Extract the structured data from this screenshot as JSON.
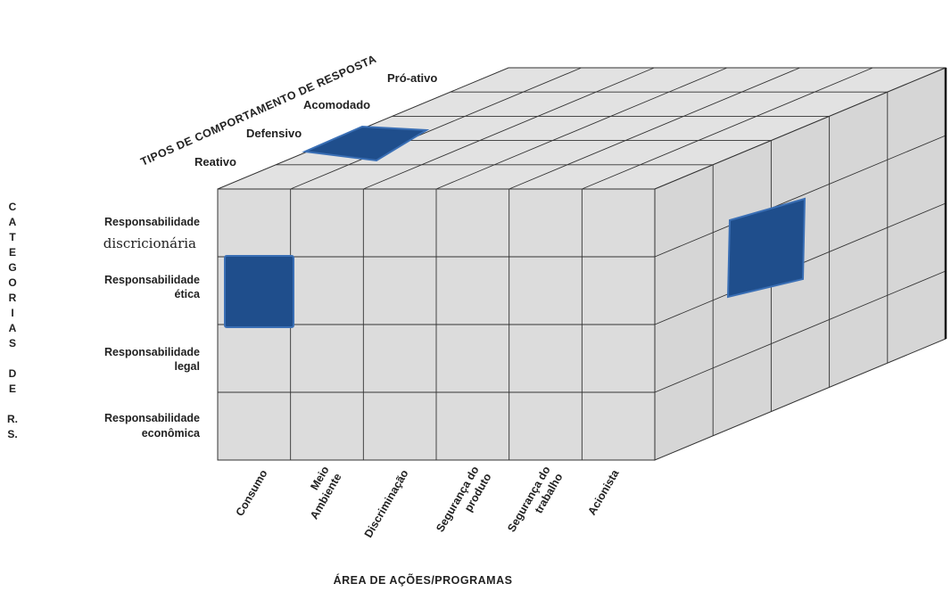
{
  "axes": {
    "top_title": "TIPOS DE COMPORTAMENTO DE RESPOSTA",
    "left_title": "CATEGORIAS DE R.S.",
    "bottom_title": "ÁREA DE AÇÕES/PROGRAMAS"
  },
  "left_letters": [
    "C",
    "A",
    "T",
    "E",
    "G",
    "O",
    "R",
    "I",
    "A",
    "S",
    "",
    "D",
    "E",
    "",
    "R.",
    "S."
  ],
  "categories": [
    {
      "line1": "Responsabilidade",
      "line2": "discricionária"
    },
    {
      "line1": "Responsabilidade",
      "line2": "ética"
    },
    {
      "line1": "Responsabilidade",
      "line2": "legal"
    },
    {
      "line1": "Responsabilidade",
      "line2": "econômica"
    }
  ],
  "tipos": [
    "Reativo",
    "Defensivo",
    "Acomodado",
    "Pró-ativo"
  ],
  "areas": [
    {
      "line1": "Consumo",
      "line2": ""
    },
    {
      "line1": "Meio",
      "line2": "Ambiente"
    },
    {
      "line1": "Discriminação",
      "line2": ""
    },
    {
      "line1": "Segurança do",
      "line2": "produto"
    },
    {
      "line1": "Segurança do",
      "line2": "trabalho"
    },
    {
      "line1": "Acionista",
      "line2": ""
    }
  ],
  "colors": {
    "face_front": "#dcdcdc",
    "face_top": "#e2e2e2",
    "face_side": "#d6d6d6",
    "highlight": "#1f4e8c"
  }
}
